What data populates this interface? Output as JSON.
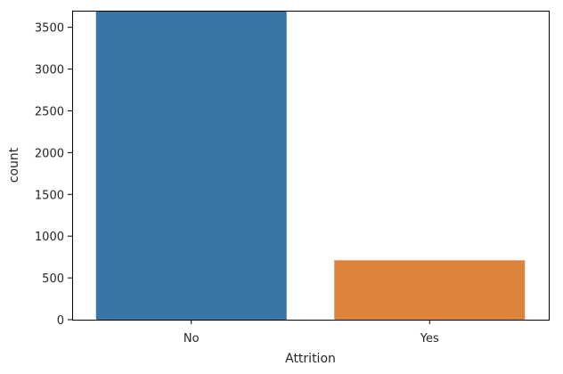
{
  "chart_data": {
    "type": "bar",
    "categories": [
      "No",
      "Yes"
    ],
    "values": [
      3699,
      711
    ],
    "colors": [
      "#3a75a6",
      "#dc833c"
    ],
    "xlabel": "Attrition",
    "ylabel": "count",
    "ylim": [
      0,
      3699
    ],
    "yticks": [
      0,
      500,
      1000,
      1500,
      2000,
      2500,
      3000,
      3500
    ],
    "grid": false,
    "legend": "none"
  }
}
